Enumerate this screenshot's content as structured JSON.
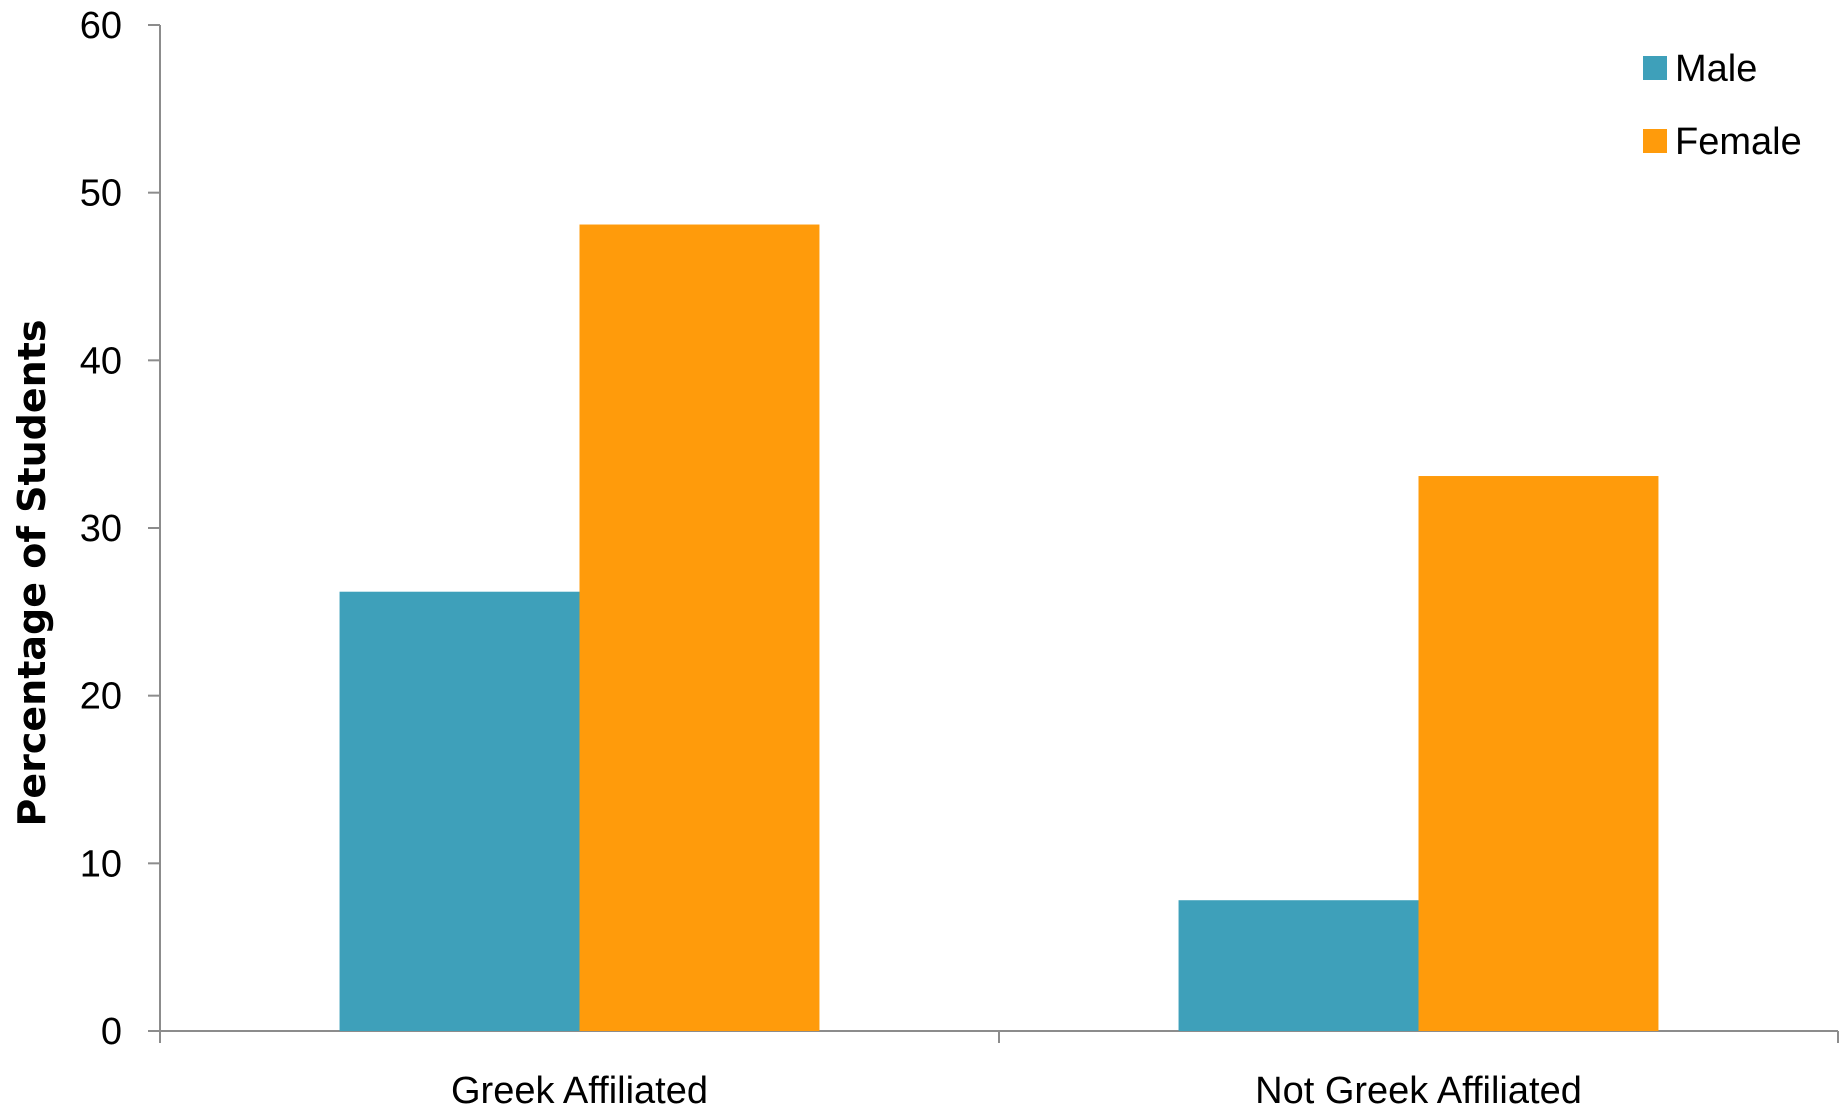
{
  "chart_data": {
    "type": "bar",
    "title": "",
    "xlabel": "",
    "ylabel": "Percentage of Students",
    "categories": [
      "Greek Affiliated",
      "Not Greek Affiliated"
    ],
    "series": [
      {
        "name": "Male",
        "values": [
          26.2,
          7.8
        ],
        "color": "#3EA0BA"
      },
      {
        "name": "Female",
        "values": [
          48.1,
          33.1
        ],
        "color": "#FF9B0B"
      }
    ],
    "ylim": [
      0,
      60
    ],
    "yticks": [
      "0",
      "10",
      "20",
      "30",
      "40",
      "50",
      "60"
    ],
    "grid": false,
    "legend_position": "top-right"
  }
}
